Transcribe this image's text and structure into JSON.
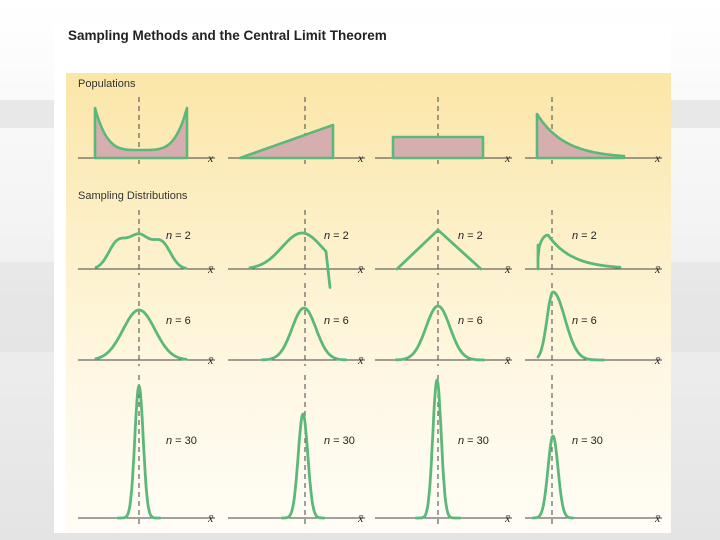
{
  "title": "Sampling Methods and the Central Limit Theorem",
  "populations_heading": "Populations",
  "sampling_heading": "Sampling Distributions",
  "population_axis_label": "x",
  "sample_axis_label": "x̄",
  "rows": [
    {
      "n_var": "n",
      "n_value": "= 2"
    },
    {
      "n_var": "n",
      "n_value": "= 6"
    },
    {
      "n_var": "n",
      "n_value": "= 30"
    }
  ],
  "colors": {
    "curve": "#5cb87a",
    "population_fill": "#d7aeb0",
    "panel": "#fbe6a8",
    "axis": "#444444"
  }
}
